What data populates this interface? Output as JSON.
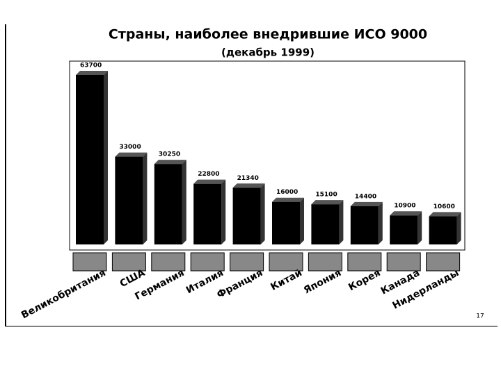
{
  "chart_data": {
    "type": "bar",
    "title": "Страны, наиболее внедрившие ИСО 9000",
    "subtitle": "(декабрь 1999)",
    "categories": [
      "Великобритания",
      "США",
      "Германия",
      "Италия",
      "Франция",
      "Китай",
      "Япония",
      "Корея",
      "Канада",
      "Нидерланды"
    ],
    "values": [
      63700,
      33000,
      30250,
      22800,
      21340,
      16000,
      15100,
      14400,
      10900,
      10600
    ],
    "color": "#000000",
    "page_number": "17"
  }
}
